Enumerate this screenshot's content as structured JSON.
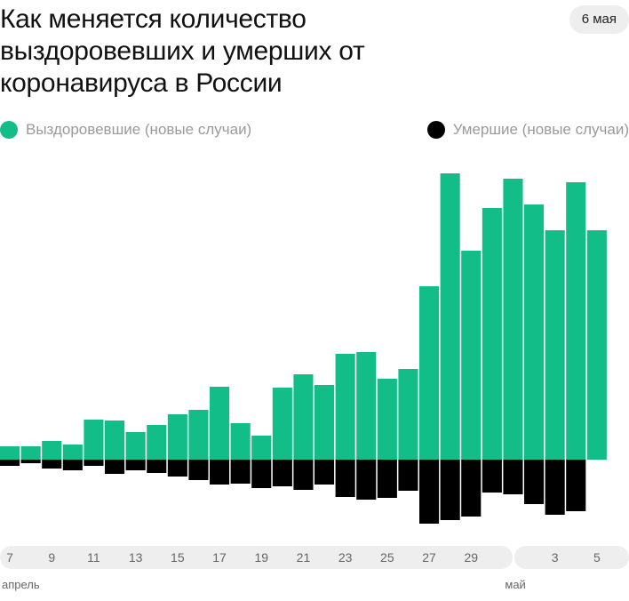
{
  "header": {
    "title": "Как меняется количество выздоровевших и умерших от коронавируса в России",
    "date": "6 мая"
  },
  "colors": {
    "recovered": "#13bd88",
    "deaths": "#000000",
    "axis_band": "#eeeeee"
  },
  "legend": {
    "recovered_label": "Выздоровевшие (новые случаи)",
    "deaths_label": "Умершие (новые случаи)"
  },
  "chart_data": {
    "type": "bar",
    "title": "Как меняется количество выздоровевших и умерших от коронавируса в России",
    "categories": [
      "7",
      "8",
      "9",
      "10",
      "11",
      "12",
      "13",
      "14",
      "15",
      "16",
      "17",
      "18",
      "19",
      "20",
      "21",
      "22",
      "23",
      "24",
      "25",
      "26",
      "27",
      "28",
      "29",
      "30",
      "1",
      "2",
      "3",
      "4",
      "5",
      "6"
    ],
    "tick_labels": [
      "7",
      "9",
      "11",
      "13",
      "15",
      "17",
      "19",
      "21",
      "23",
      "25",
      "27",
      "29",
      "3",
      "5"
    ],
    "month_labels": [
      {
        "label": "апрель",
        "at": "7"
      },
      {
        "label": "май",
        "at": "1"
      }
    ],
    "series": [
      {
        "name": "Выздоровевшие (новые случаи)",
        "color": "#13bd88",
        "values": [
          15,
          15,
          21,
          17,
          45,
          44,
          31,
          39,
          51,
          56,
          82,
          41,
          27,
          81,
          96,
          84,
          119,
          121,
          91,
          102,
          195,
          322,
          235,
          283,
          316,
          287,
          258,
          312,
          258,
          0
        ]
      },
      {
        "name": "Умершие (новые случаи)",
        "color": "#000000",
        "values": [
          7,
          4,
          10,
          12,
          7,
          16,
          12,
          15,
          19,
          23,
          28,
          27,
          32,
          30,
          34,
          28,
          42,
          45,
          43,
          35,
          72,
          68,
          64,
          37,
          39,
          50,
          62,
          58,
          0,
          0
        ]
      }
    ],
    "legend_position": "top",
    "grid": false
  }
}
